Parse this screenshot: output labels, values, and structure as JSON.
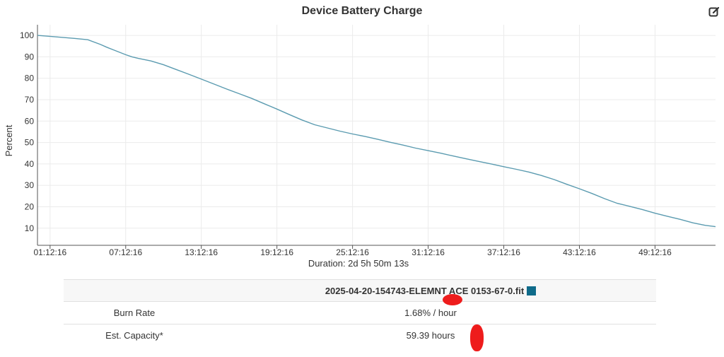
{
  "title": "Device Battery Charge",
  "icons": {
    "edit": "edit-icon"
  },
  "chart_data": {
    "type": "line",
    "title": "Device Battery Charge",
    "ylabel": "Percent",
    "xlabel": "Duration: 2d 5h 50m 13s",
    "ylim": [
      2,
      105
    ],
    "yticks": [
      10,
      20,
      30,
      40,
      50,
      60,
      70,
      80,
      90,
      100
    ],
    "xlim_hours": [
      0,
      53.8
    ],
    "xticks": [
      {
        "label": "01:12:16",
        "hours": 1
      },
      {
        "label": "07:12:16",
        "hours": 7
      },
      {
        "label": "13:12:16",
        "hours": 13
      },
      {
        "label": "19:12:16",
        "hours": 19
      },
      {
        "label": "25:12:16",
        "hours": 25
      },
      {
        "label": "31:12:16",
        "hours": 31
      },
      {
        "label": "37:12:16",
        "hours": 37
      },
      {
        "label": "43:12:16",
        "hours": 43
      },
      {
        "label": "49:12:16",
        "hours": 49
      }
    ],
    "grid": true,
    "color": "#5b9bb0",
    "series": [
      {
        "x": [
          0,
          1,
          2,
          3,
          3.5,
          4,
          5,
          5.5,
          6,
          7,
          7.5,
          8,
          9,
          10,
          11,
          12,
          13,
          14,
          15,
          16,
          17,
          18,
          19,
          20,
          21,
          22,
          23,
          24,
          25,
          26,
          27,
          28,
          29,
          30,
          31,
          32,
          33,
          34,
          35,
          36,
          37,
          38,
          39,
          40,
          41,
          42,
          43,
          44,
          45,
          46,
          47,
          48,
          49,
          50,
          51,
          52,
          53,
          53.8
        ],
        "y": [
          100,
          99.6,
          99.1,
          98.6,
          98.3,
          98,
          95.8,
          94.5,
          93.3,
          91,
          90,
          89.3,
          88.1,
          86.3,
          84.1,
          81.9,
          79.6,
          77.3,
          75,
          72.8,
          70.6,
          68.1,
          65.6,
          63,
          60.5,
          58.3,
          56.8,
          55.3,
          54,
          52.8,
          51.5,
          50.1,
          48.8,
          47.4,
          46.2,
          45,
          43.7,
          42.4,
          41.2,
          40,
          38.7,
          37.5,
          36.2,
          34.6,
          32.7,
          30.5,
          28.4,
          26.2,
          23.8,
          21.6,
          20.2,
          18.7,
          17,
          15.5,
          14.1,
          12.5,
          11.3,
          10.7
        ]
      }
    ]
  },
  "table": {
    "file_name": "2025-04-20-154743-ELEMNT ACE 0153-67-0.fit",
    "file_color": "#0f6b8a",
    "rows": [
      {
        "label": "Burn Rate",
        "value": "1.68% / hour"
      },
      {
        "label": "Est. Capacity*",
        "value": "59.39 hours"
      }
    ]
  }
}
